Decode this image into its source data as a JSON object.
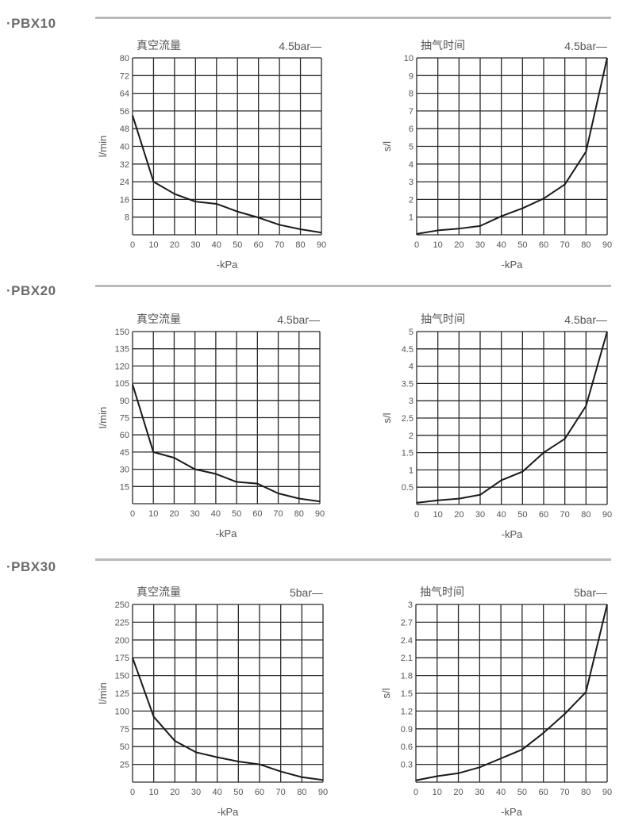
{
  "sections": [
    {
      "title": "·PBX10"
    },
    {
      "title": "·PBX20"
    },
    {
      "title": "·PBX30"
    }
  ],
  "colors": {
    "line": "#1a1a1a",
    "grid": "#2a2a2a",
    "section_rule": "#b9b9b9",
    "heading": "#6b6b6b"
  },
  "chart_data": [
    {
      "type": "line",
      "section": "PBX10",
      "title": "真空流量",
      "legend": "4.5bar—",
      "xlabel": "-kPa",
      "ylabel": "l/min",
      "xlim": [
        0,
        90
      ],
      "ylim": [
        0,
        80
      ],
      "grid": true,
      "xticks": [
        "0",
        "10",
        "20",
        "30",
        "40",
        "50",
        "60",
        "70",
        "80",
        "90"
      ],
      "yticks": [
        "8",
        "16",
        "24",
        "32",
        "40",
        "48",
        "56",
        "64",
        "72",
        "80"
      ],
      "x": [
        0,
        10,
        20,
        30,
        40,
        50,
        60,
        70,
        80,
        90
      ],
      "y": [
        54,
        24,
        18.5,
        15,
        14,
        10.5,
        7.8,
        4.5,
        2.5,
        1
      ]
    },
    {
      "type": "line",
      "section": "PBX10",
      "title": "抽气时间",
      "legend": "4.5bar—",
      "xlabel": "-kPa",
      "ylabel": "s/l",
      "xlim": [
        0,
        90
      ],
      "ylim": [
        0,
        10
      ],
      "grid": true,
      "xticks": [
        "0",
        "10",
        "20",
        "30",
        "40",
        "50",
        "60",
        "70",
        "80",
        "90"
      ],
      "yticks": [
        "1",
        "2",
        "3",
        "4",
        "5",
        "6",
        "7",
        "8",
        "9",
        "10"
      ],
      "x": [
        0,
        10,
        20,
        30,
        40,
        50,
        60,
        70,
        80,
        90
      ],
      "y": [
        0.05,
        0.25,
        0.35,
        0.5,
        1.05,
        1.5,
        2.05,
        2.85,
        4.7,
        10
      ]
    },
    {
      "type": "line",
      "section": "PBX20",
      "title": "真空流量",
      "legend": "4.5bar—",
      "xlabel": "-kPa",
      "ylabel": "l/min",
      "xlim": [
        0,
        90
      ],
      "ylim": [
        0,
        150
      ],
      "grid": true,
      "xticks": [
        "0",
        "10",
        "20",
        "30",
        "40",
        "50",
        "60",
        "70",
        "80",
        "90"
      ],
      "yticks": [
        "15",
        "30",
        "45",
        "60",
        "75",
        "90",
        "105",
        "120",
        "135",
        "150"
      ],
      "x": [
        0,
        10,
        20,
        30,
        40,
        50,
        60,
        70,
        80,
        90
      ],
      "y": [
        104,
        45,
        40,
        30,
        26,
        19,
        17.5,
        9,
        4.5,
        2
      ]
    },
    {
      "type": "line",
      "section": "PBX20",
      "title": "抽气时间",
      "legend": "4.5bar—",
      "xlabel": "-kPa",
      "ylabel": "s/l",
      "xlim": [
        0,
        90
      ],
      "ylim": [
        0,
        5
      ],
      "grid": true,
      "xticks": [
        "0",
        "10",
        "20",
        "30",
        "40",
        "50",
        "60",
        "70",
        "80",
        "90"
      ],
      "yticks": [
        "0.5",
        "1",
        "1.5",
        "2",
        "2.5",
        "3",
        "3.5",
        "4",
        "4.5",
        "5"
      ],
      "x": [
        0,
        10,
        20,
        30,
        40,
        50,
        60,
        70,
        80,
        90
      ],
      "y": [
        0.05,
        0.12,
        0.17,
        0.28,
        0.7,
        0.95,
        1.5,
        1.9,
        2.85,
        5
      ]
    },
    {
      "type": "line",
      "section": "PBX30",
      "title": "真空流量",
      "legend": "5bar—",
      "xlabel": "-kPa",
      "ylabel": "l/min",
      "xlim": [
        0,
        90
      ],
      "ylim": [
        0,
        250
      ],
      "grid": true,
      "xticks": [
        "0",
        "10",
        "20",
        "30",
        "40",
        "50",
        "60",
        "70",
        "80",
        "90"
      ],
      "yticks": [
        "25",
        "50",
        "75",
        "100",
        "125",
        "150",
        "175",
        "200",
        "225",
        "250"
      ],
      "x": [
        0,
        10,
        20,
        30,
        40,
        50,
        60,
        70,
        80,
        90
      ],
      "y": [
        175,
        92,
        58,
        42,
        35,
        29,
        25,
        15,
        7,
        3
      ]
    },
    {
      "type": "line",
      "section": "PBX30",
      "title": "抽气时间",
      "legend": "5bar—",
      "xlabel": "-kPa",
      "ylabel": "s/l",
      "xlim": [
        0,
        90
      ],
      "ylim": [
        0,
        3
      ],
      "grid": true,
      "xticks": [
        "0",
        "10",
        "20",
        "30",
        "40",
        "50",
        "60",
        "70",
        "80",
        "90"
      ],
      "yticks": [
        "0.3",
        "0.6",
        "0.9",
        "1.2",
        "1.5",
        "1.8",
        "2.1",
        "2.4",
        "2.7",
        "3"
      ],
      "x": [
        0,
        10,
        20,
        30,
        40,
        50,
        60,
        70,
        80,
        90
      ],
      "y": [
        0.03,
        0.1,
        0.15,
        0.25,
        0.4,
        0.55,
        0.83,
        1.15,
        1.52,
        3
      ]
    }
  ]
}
